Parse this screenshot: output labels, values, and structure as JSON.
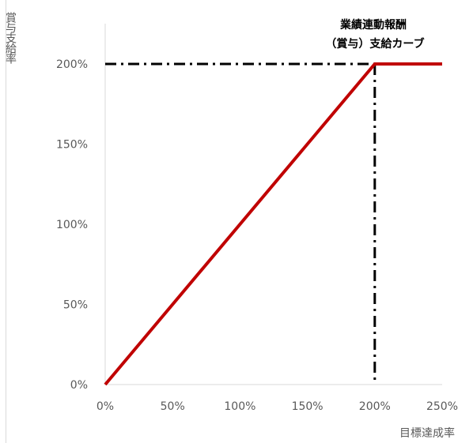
{
  "chart_data": {
    "type": "line",
    "title": "",
    "xlabel": "目標達成率",
    "ylabel": "賞与支給率",
    "xlim": [
      0,
      250
    ],
    "ylim": [
      0,
      200
    ],
    "x_tick_values": [
      0,
      50,
      100,
      150,
      200,
      250
    ],
    "y_tick_values": [
      0,
      50,
      100,
      150,
      200
    ],
    "x_tick_labels": [
      "0%",
      "50%",
      "100%",
      "150%",
      "200%",
      "250%"
    ],
    "y_tick_labels": [
      "0%",
      "50%",
      "100%",
      "150%",
      "200%"
    ],
    "grid": false,
    "series": [
      {
        "x": [
          0,
          200,
          250
        ],
        "y": [
          0,
          200,
          200
        ],
        "color": "#c00000"
      }
    ],
    "reference_lines": [
      {
        "orientation": "horizontal",
        "value": 200,
        "from": 0,
        "to": 200,
        "style": "dash-dot",
        "color": "#000000"
      },
      {
        "orientation": "vertical",
        "value": 200,
        "from": 0,
        "to": 200,
        "style": "dash-dot",
        "color": "#000000"
      }
    ],
    "annotation": {
      "lines": [
        "業績連動報酬",
        "（賞与）支給カーブ"
      ]
    }
  }
}
